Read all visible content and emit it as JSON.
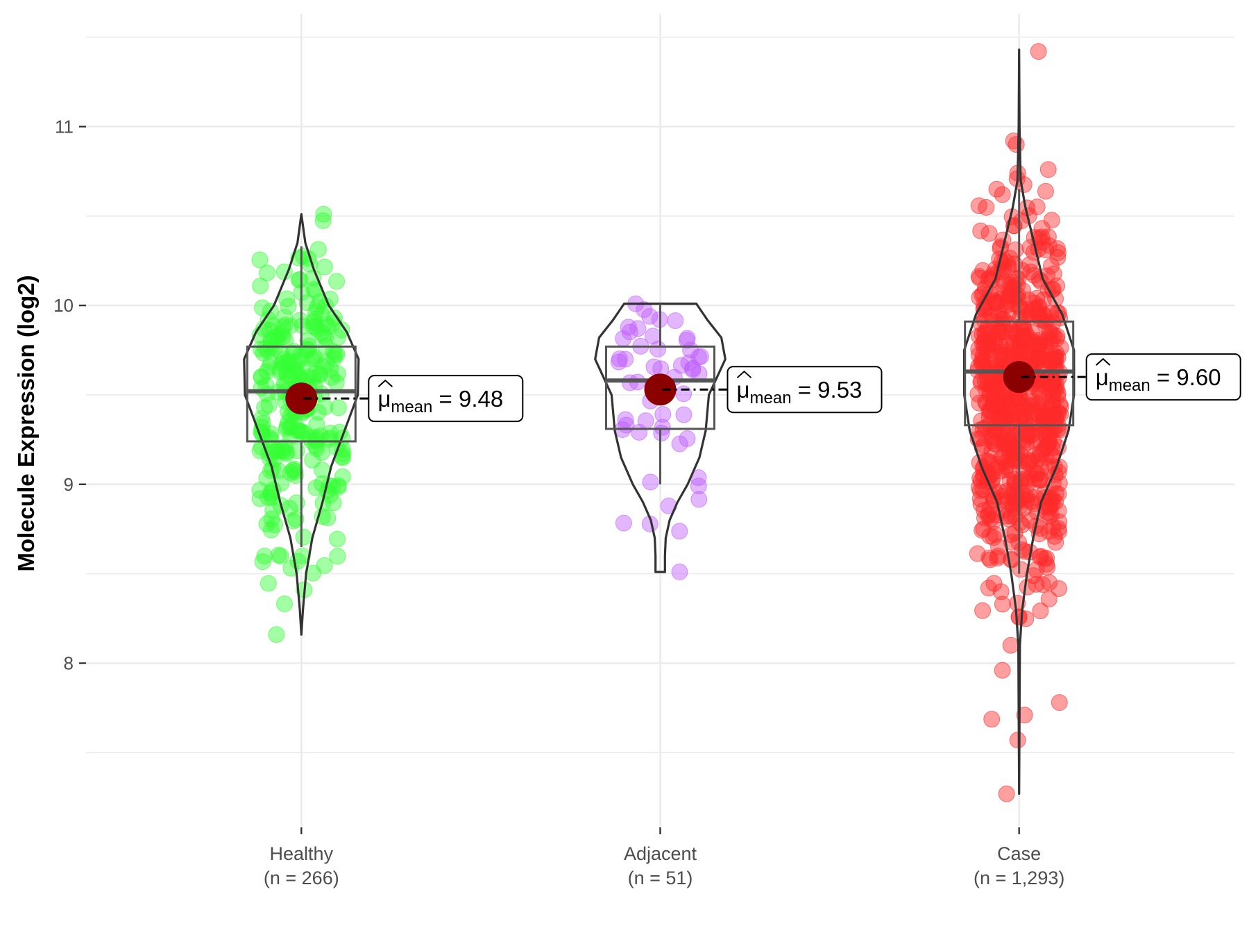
{
  "chart_data": {
    "type": "violin",
    "title": "",
    "xlabel": "",
    "ylabel": "Molecule Expression (log2)",
    "ylim": [
      7.09,
      11.63
    ],
    "y_ticks": [
      8,
      9,
      10,
      11
    ],
    "y_tick_labels": [
      "8",
      "9",
      "10",
      "11"
    ],
    "y_minor_ticks": [
      7.5,
      8.5,
      9.5,
      10.5,
      11.5
    ],
    "grid": true,
    "mean_label_prefix": "μ",
    "mean_label_sub": "mean",
    "mean_label_eq": "=",
    "groups": [
      {
        "name": "Healthy",
        "n_label": "(n = 266)",
        "n": 266,
        "color": "#33ff33",
        "mean": 9.48,
        "mean_label": "9.48",
        "q1": 9.24,
        "median": 9.52,
        "q3": 9.77,
        "whisker_low": 8.65,
        "whisker_high": 10.33,
        "min": 8.16,
        "max": 10.51,
        "violin_profile": [
          [
            8.16,
            0.0
          ],
          [
            8.3,
            0.02
          ],
          [
            8.5,
            0.06
          ],
          [
            8.7,
            0.14
          ],
          [
            8.9,
            0.27
          ],
          [
            9.1,
            0.38
          ],
          [
            9.3,
            0.55
          ],
          [
            9.5,
            0.72
          ],
          [
            9.7,
            0.73
          ],
          [
            9.85,
            0.58
          ],
          [
            10.0,
            0.35
          ],
          [
            10.2,
            0.16
          ],
          [
            10.35,
            0.05
          ],
          [
            10.51,
            0.0
          ]
        ],
        "outliers": [
          [
            8.16,
            -0.18
          ],
          [
            8.41,
            0.02
          ],
          [
            10.51,
            0.16
          ]
        ]
      },
      {
        "name": "Adjacent",
        "n_label": "(n = 51)",
        "n": 51,
        "color": "#bf5fff",
        "mean": 9.53,
        "mean_label": "9.53",
        "q1": 9.31,
        "median": 9.58,
        "q3": 9.77,
        "whisker_low": 9.0,
        "whisker_high": 10.01,
        "min": 8.51,
        "max": 10.01,
        "violin_profile": [
          [
            8.51,
            0.06
          ],
          [
            8.6,
            0.06
          ],
          [
            8.7,
            0.07
          ],
          [
            8.8,
            0.12
          ],
          [
            8.9,
            0.22
          ],
          [
            9.0,
            0.35
          ],
          [
            9.15,
            0.5
          ],
          [
            9.3,
            0.58
          ],
          [
            9.5,
            0.62
          ],
          [
            9.7,
            0.83
          ],
          [
            9.82,
            0.78
          ],
          [
            9.92,
            0.6
          ],
          [
            10.01,
            0.46
          ]
        ],
        "outliers": [
          [
            8.51,
            0.14
          ]
        ]
      },
      {
        "name": "Case",
        "n_label": "(n = 1,293)",
        "n": 1293,
        "color": "#ff2a2a",
        "mean": 9.6,
        "mean_label": "9.60",
        "q1": 9.33,
        "median": 9.63,
        "q3": 9.91,
        "whisker_low": 8.5,
        "whisker_high": 10.65,
        "min": 7.27,
        "max": 11.43,
        "violin_profile": [
          [
            7.27,
            0.0
          ],
          [
            8.1,
            0.01
          ],
          [
            8.3,
            0.04
          ],
          [
            8.5,
            0.1
          ],
          [
            8.7,
            0.18
          ],
          [
            8.9,
            0.28
          ],
          [
            9.1,
            0.48
          ],
          [
            9.3,
            0.63
          ],
          [
            9.5,
            0.7
          ],
          [
            9.75,
            0.7
          ],
          [
            9.95,
            0.55
          ],
          [
            10.15,
            0.3
          ],
          [
            10.35,
            0.19
          ],
          [
            10.55,
            0.08
          ],
          [
            10.7,
            0.02
          ],
          [
            11.0,
            0.005
          ],
          [
            11.43,
            0.0
          ]
        ],
        "outliers": [
          [
            11.42,
            0.14
          ],
          [
            10.92,
            -0.04
          ],
          [
            10.9,
            -0.02
          ],
          [
            10.76,
            0.21
          ],
          [
            10.74,
            -0.01
          ],
          [
            10.62,
            -0.12
          ],
          [
            8.1,
            -0.06
          ],
          [
            7.96,
            -0.12
          ],
          [
            7.71,
            0.04
          ],
          [
            7.57,
            -0.01
          ],
          [
            7.27,
            -0.09
          ],
          [
            8.26,
            0.0
          ],
          [
            8.4,
            -0.13
          ],
          [
            8.44,
            0.17
          ]
        ]
      }
    ]
  }
}
